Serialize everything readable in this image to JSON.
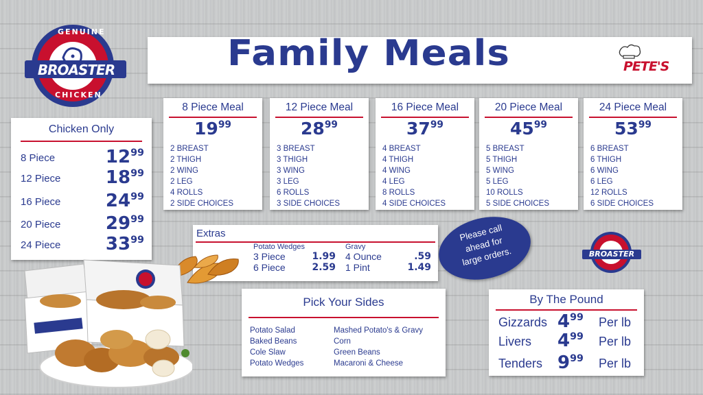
{
  "header": {
    "title": "Family Meals"
  },
  "brand": {
    "top_text": "GENUINE",
    "name": "BROASTER",
    "bottom_text": "CHICKEN",
    "partner": "PETE'S"
  },
  "colors": {
    "navy": "#2a3a8f",
    "red": "#c8102e",
    "panel": "#ffffff",
    "wood": "#c9cbcc"
  },
  "chicken_only": {
    "title": "Chicken Only",
    "rows": [
      {
        "label": "8 Piece",
        "dollars": "12",
        "cents": "99"
      },
      {
        "label": "12 Piece",
        "dollars": "18",
        "cents": "99"
      },
      {
        "label": "16 Piece",
        "dollars": "24",
        "cents": "99"
      },
      {
        "label": "20 Piece",
        "dollars": "29",
        "cents": "99"
      },
      {
        "label": "24 Piece",
        "dollars": "33",
        "cents": "99"
      }
    ]
  },
  "meals": [
    {
      "title": "8 Piece Meal",
      "dollars": "19",
      "cents": "99",
      "items": [
        "2 BREAST",
        "2 THIGH",
        "2 WING",
        "2 LEG",
        "4 ROLLS",
        "2 SIDE CHOICES"
      ]
    },
    {
      "title": "12 Piece Meal",
      "dollars": "28",
      "cents": "99",
      "items": [
        "3 BREAST",
        "3 THIGH",
        "3 WING",
        "3 LEG",
        "6 ROLLS",
        "3 SIDE CHOICES"
      ]
    },
    {
      "title": "16 Piece Meal",
      "dollars": "37",
      "cents": "99",
      "items": [
        "4 BREAST",
        "4 THIGH",
        "4 WING",
        "4 LEG",
        "8 ROLLS",
        "4 SIDE CHOICES"
      ]
    },
    {
      "title": "20 Piece Meal",
      "dollars": "45",
      "cents": "99",
      "items": [
        "5 BREAST",
        "5 THIGH",
        "5 WING",
        "5 LEG",
        "10 ROLLS",
        "5 SIDE CHOICES"
      ]
    },
    {
      "title": "24 Piece Meal",
      "dollars": "53",
      "cents": "99",
      "items": [
        "6 BREAST",
        "6 THIGH",
        "6 WING",
        "6 LEG",
        "12 ROLLS",
        "6 SIDE CHOICES"
      ]
    }
  ],
  "extras": {
    "title": "Extras",
    "wedges": {
      "heading": "Potato Wedges",
      "rows": [
        {
          "label": "3 Piece",
          "price": "1.99"
        },
        {
          "label": "6 Piece",
          "price": "2.59"
        }
      ]
    },
    "gravy": {
      "heading": "Gravy",
      "rows": [
        {
          "label": "4 Ounce",
          "price": ".59"
        },
        {
          "label": "1 Pint",
          "price": "1.49"
        }
      ]
    }
  },
  "call_ahead": {
    "line1": "Please call",
    "line2": "ahead for",
    "line3": "large orders."
  },
  "sides": {
    "title": "Pick Your Sides",
    "left": [
      "Potato Salad",
      "Baked Beans",
      "Cole Slaw",
      "Potato Wedges"
    ],
    "right": [
      "Mashed Potato's & Gravy",
      "Corn",
      "Green Beans",
      "Macaroni & Cheese"
    ]
  },
  "by_pound": {
    "title": "By The Pound",
    "rows": [
      {
        "label": "Gizzards",
        "dollars": "4",
        "cents": "99",
        "unit": "Per lb"
      },
      {
        "label": "Livers",
        "dollars": "4",
        "cents": "99",
        "unit": "Per lb"
      },
      {
        "label": "Tenders",
        "dollars": "9",
        "cents": "99",
        "unit": "Per lb"
      }
    ]
  }
}
